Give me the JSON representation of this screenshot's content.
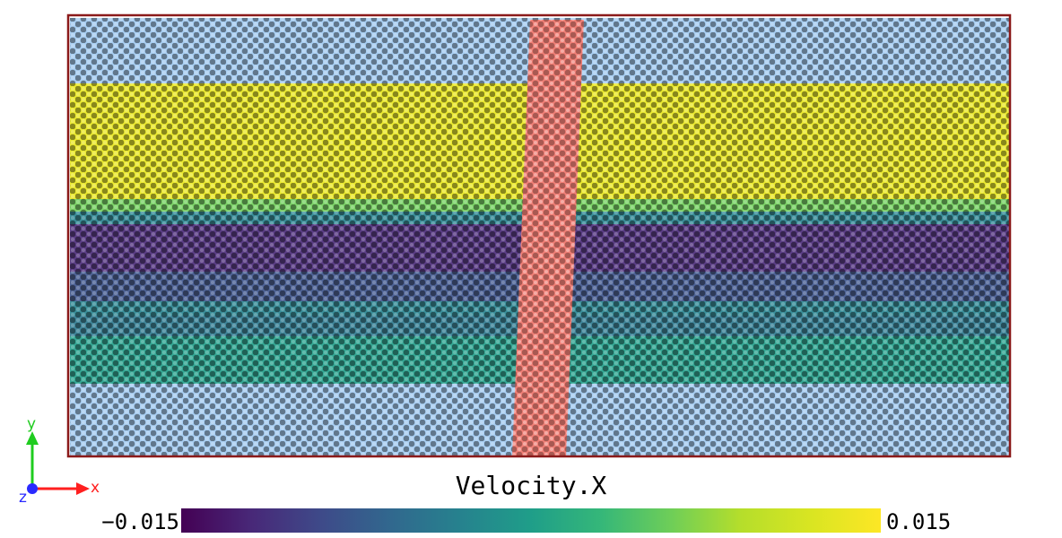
{
  "colors": {
    "bulk": "#9ec8f0",
    "indenter": "#f07f76",
    "box": "#8b1a1a",
    "x_axis": "#ff1f1f",
    "y_axis": "#1fcc1f",
    "z_axis": "#2a2aff"
  },
  "bands": [
    {
      "color": "#9ec8f0"
    },
    {
      "color": "#e8e619"
    },
    {
      "color": "#6ece58"
    },
    {
      "color": "#25828e"
    },
    {
      "color": "#482878"
    },
    {
      "color": "#3b528b"
    },
    {
      "color": "#25828e"
    },
    {
      "color": "#2a788e"
    },
    {
      "color": "#1f9e89"
    },
    {
      "color": "#9ec8f0"
    }
  ],
  "axes": {
    "x": "x",
    "y": "y",
    "z": "z"
  },
  "colorbar": {
    "title": "Velocity.X",
    "min_label": "−0.015",
    "max_label": "0.015",
    "colormap": "viridis"
  }
}
